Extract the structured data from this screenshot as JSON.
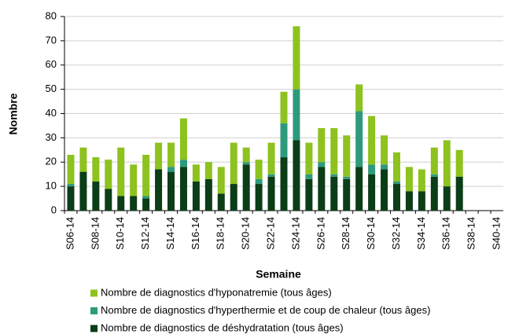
{
  "chart_data": {
    "type": "stacked_bar",
    "x_label": "Semaine",
    "y_label": "Nombre",
    "categories": [
      "S06-14",
      null,
      "S08-14",
      null,
      "S10-14",
      null,
      "S12-14",
      null,
      "S14-14",
      null,
      "S16-14",
      null,
      "S18-14",
      null,
      "S20-14",
      null,
      "S22-14",
      null,
      "S24-14",
      null,
      "S26-14",
      null,
      "S28-14",
      null,
      "S30-14",
      null,
      "S32-14",
      null,
      "S34-14",
      null,
      "S36-14",
      null,
      "S38-14",
      null,
      "S40-14"
    ],
    "series": [
      {
        "name": "Nombre de diagnostics de déshydratation (tous âges)",
        "color": "#0b3d17",
        "values": [
          10,
          16,
          12,
          9,
          6,
          6,
          5,
          17,
          16,
          18,
          12,
          13,
          7,
          11,
          19,
          11,
          14,
          22,
          29,
          13,
          18,
          14,
          13,
          18,
          15,
          17,
          11,
          8,
          8,
          14,
          10,
          14,
          null,
          null,
          null
        ]
      },
      {
        "name": "Nombre de diagnostics d'hyperthermie et de coup de chaleur (tous âges)",
        "color": "#2e9a7c",
        "values": [
          1,
          0,
          0,
          0,
          0,
          0,
          1,
          0,
          2,
          3,
          0,
          0,
          0,
          0,
          1,
          2,
          1,
          14,
          21,
          2,
          2,
          1,
          1,
          23,
          4,
          2,
          1,
          0,
          0,
          1,
          0,
          0,
          null,
          null,
          null
        ]
      },
      {
        "name": "Nombre de diagnostics d'hyponatremie (tous âges)",
        "color": "#8dc21f",
        "values": [
          12,
          10,
          10,
          12,
          20,
          13,
          17,
          11,
          10,
          17,
          7,
          7,
          11,
          17,
          6,
          8,
          13,
          13,
          26,
          13,
          14,
          19,
          17,
          11,
          20,
          12,
          12,
          10,
          9,
          11,
          19,
          11,
          null,
          null,
          null
        ]
      }
    ],
    "ylim": [
      0,
      80
    ],
    "yticks": [
      0,
      10,
      20,
      30,
      40,
      50,
      60,
      70,
      80
    ],
    "grid": true
  }
}
